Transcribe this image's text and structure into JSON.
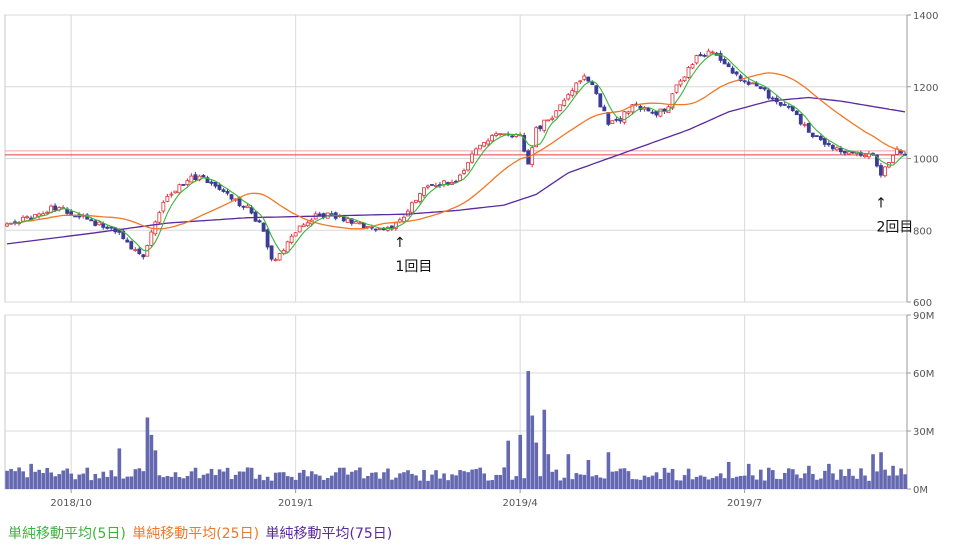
{
  "chart_data": [
    {
      "type": "candlestick",
      "ylim": [
        600,
        1400
      ],
      "y_ticks": [
        "1400",
        "1200",
        "1000",
        "800",
        "600"
      ],
      "x_ticks": [
        "2018/10",
        "2019/1",
        "2019/4",
        "2019/7"
      ],
      "reference_line": 1010,
      "colors": {
        "up": "#e0303a",
        "down": "#3c3c96",
        "ma5": "#3cb43c",
        "ma25": "#f07828",
        "ma75": "#5a28a0",
        "ref": "#e04040"
      },
      "grid": true,
      "price_path": [
        [
          0,
          818
        ],
        [
          8,
          840
        ],
        [
          12,
          865
        ],
        [
          16,
          850
        ],
        [
          20,
          830
        ],
        [
          24,
          810
        ],
        [
          28,
          790
        ],
        [
          32,
          745
        ],
        [
          34,
          720
        ],
        [
          36,
          800
        ],
        [
          40,
          900
        ],
        [
          44,
          935
        ],
        [
          48,
          955
        ],
        [
          52,
          920
        ],
        [
          56,
          890
        ],
        [
          60,
          860
        ],
        [
          64,
          800
        ],
        [
          66,
          720
        ],
        [
          68,
          730
        ],
        [
          72,
          800
        ],
        [
          76,
          835
        ],
        [
          80,
          845
        ],
        [
          84,
          835
        ],
        [
          88,
          815
        ],
        [
          92,
          810
        ],
        [
          96,
          800
        ],
        [
          100,
          860
        ],
        [
          104,
          910
        ],
        [
          108,
          930
        ],
        [
          112,
          940
        ],
        [
          116,
          1010
        ],
        [
          120,
          1050
        ],
        [
          124,
          1070
        ],
        [
          128,
          1060
        ],
        [
          130,
          980
        ],
        [
          132,
          1080
        ],
        [
          136,
          1120
        ],
        [
          140,
          1180
        ],
        [
          144,
          1230
        ],
        [
          146,
          1200
        ],
        [
          148,
          1150
        ],
        [
          150,
          1100
        ],
        [
          152,
          1100
        ],
        [
          156,
          1150
        ],
        [
          160,
          1130
        ],
        [
          164,
          1130
        ],
        [
          168,
          1220
        ],
        [
          172,
          1280
        ],
        [
          176,
          1300
        ],
        [
          180,
          1250
        ],
        [
          184,
          1210
        ],
        [
          188,
          1200
        ],
        [
          192,
          1150
        ],
        [
          196,
          1130
        ],
        [
          200,
          1080
        ],
        [
          204,
          1040
        ],
        [
          208,
          1020
        ],
        [
          212,
          1020
        ],
        [
          216,
          1010
        ],
        [
          218,
          960
        ],
        [
          220,
          990
        ],
        [
          222,
          1020
        ],
        [
          224,
          1015
        ]
      ],
      "series": [
        {
          "name": "単純移動平均(5日)"
        },
        {
          "name": "単純移動平均(25日)"
        },
        {
          "name": "単純移動平均(75日)"
        }
      ],
      "ma75_path": [
        [
          0,
          762
        ],
        [
          20,
          790
        ],
        [
          40,
          820
        ],
        [
          60,
          835
        ],
        [
          80,
          840
        ],
        [
          100,
          845
        ],
        [
          112,
          855
        ],
        [
          124,
          870
        ],
        [
          132,
          900
        ],
        [
          140,
          960
        ],
        [
          150,
          1000
        ],
        [
          160,
          1040
        ],
        [
          170,
          1080
        ],
        [
          180,
          1130
        ],
        [
          190,
          1160
        ],
        [
          200,
          1170
        ],
        [
          208,
          1160
        ],
        [
          216,
          1145
        ],
        [
          224,
          1130
        ]
      ],
      "annotations": [
        {
          "label": "1回目",
          "arrow": "↑",
          "index": 98,
          "value": 815
        },
        {
          "label": "2回目",
          "arrow": "↑",
          "index": 218,
          "value": 925
        }
      ]
    },
    {
      "type": "bar",
      "ylim": [
        0,
        90
      ],
      "y_ticks": [
        "90M",
        "60M",
        "30M",
        "0M"
      ],
      "x_ticks": [
        "2018/10",
        "2019/1",
        "2019/4",
        "2019/7"
      ],
      "color": "#6468b0",
      "baseline": 7,
      "spikes": [
        [
          35,
          37
        ],
        [
          36,
          28
        ],
        [
          37,
          20
        ],
        [
          28,
          21
        ],
        [
          6,
          13
        ],
        [
          128,
          28
        ],
        [
          130,
          61
        ],
        [
          131,
          38
        ],
        [
          132,
          24
        ],
        [
          134,
          41
        ],
        [
          125,
          25
        ],
        [
          135,
          18
        ],
        [
          140,
          18
        ],
        [
          145,
          15
        ],
        [
          150,
          19
        ],
        [
          180,
          14
        ],
        [
          185,
          13
        ],
        [
          190,
          11
        ],
        [
          200,
          12
        ],
        [
          205,
          13
        ],
        [
          216,
          18
        ],
        [
          218,
          19
        ],
        [
          219,
          10
        ],
        [
          221,
          12
        ]
      ]
    }
  ],
  "legend": {
    "ma5": "単純移動平均(5日)",
    "ma25": "単純移動平均(25日)",
    "ma75": "単純移動平均(75日)"
  }
}
